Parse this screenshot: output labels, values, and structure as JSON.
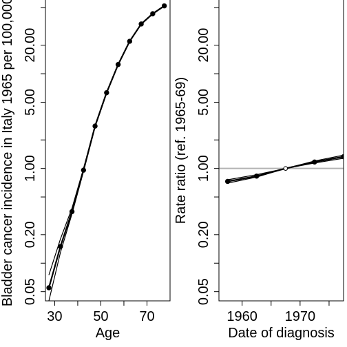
{
  "chart_data": [
    {
      "type": "line",
      "panel": "age",
      "xlabel": "Age",
      "ylabel": "Bladder cancer incidence in Italy 1965 per 100,000",
      "xlim": [
        26,
        80
      ],
      "ylim": [
        0.04,
        60
      ],
      "y_scale": "log",
      "x_ticks": [
        30,
        50,
        70
      ],
      "x_tick_labels": [
        "30",
        "50",
        "70"
      ],
      "x_minor_ticks": [
        40,
        60
      ],
      "y_ticks": [
        0.05,
        0.2,
        1.0,
        5.0,
        20.0
      ],
      "y_tick_labels": [
        "0.05",
        "0.20",
        "1.00",
        "5.00",
        "20.00"
      ],
      "y_minor_ticks": [
        0.1,
        0.5,
        2.0,
        10.0,
        50.0
      ],
      "points": {
        "x": [
          27.5,
          32.5,
          37.5,
          42.5,
          47.5,
          52.5,
          57.5,
          62.5,
          67.5,
          72.5,
          77.5
        ],
        "y": [
          0.055,
          0.15,
          0.35,
          0.96,
          2.8,
          6.3,
          12.5,
          22.0,
          33.5,
          43.0,
          52.0
        ]
      },
      "band": {
        "x": [
          27.5,
          32.5,
          37.5,
          42.5,
          47.5,
          52.5,
          57.5,
          62.5,
          67.5,
          72.5,
          77.5
        ],
        "lower": [
          0.04,
          0.13,
          0.33,
          0.93,
          2.75,
          6.2,
          12.4,
          21.8,
          33.2,
          42.6,
          51.5
        ],
        "upper": [
          0.075,
          0.18,
          0.38,
          1.0,
          2.85,
          6.4,
          12.6,
          22.2,
          33.8,
          43.4,
          52.5
        ]
      }
    },
    {
      "type": "line",
      "panel": "period",
      "xlabel": "Date of diagnosis",
      "ylabel": "Rate ratio (ref. 1965-69)",
      "xlim": [
        1956,
        1977.5
      ],
      "ylim": [
        0.04,
        60
      ],
      "y_scale": "log",
      "x_ticks": [
        1960,
        1970
      ],
      "x_tick_labels": [
        "1960",
        "1970"
      ],
      "x_minor_ticks": [
        1965,
        1975
      ],
      "y_ticks": [
        0.05,
        0.2,
        1.0,
        5.0,
        20.0
      ],
      "y_tick_labels": [
        "0.05",
        "0.20",
        "1.00",
        "5.00",
        "20.00"
      ],
      "y_minor_ticks": [
        0.1,
        0.5,
        2.0,
        10.0,
        50.0
      ],
      "reference_line": {
        "y": 1.0,
        "color": "#b3b3b3"
      },
      "points": {
        "x": [
          1957.5,
          1962.5,
          1967.5,
          1972.5,
          1977.5
        ],
        "y": [
          0.73,
          0.83,
          1.0,
          1.17,
          1.33
        ]
      },
      "band": {
        "x": [
          1957.5,
          1962.5,
          1967.5,
          1972.5,
          1977.5
        ],
        "lower": [
          0.7,
          0.81,
          1.0,
          1.14,
          1.28
        ],
        "upper": [
          0.76,
          0.86,
          1.0,
          1.2,
          1.38
        ]
      },
      "open_points": [
        1967.5
      ]
    }
  ]
}
